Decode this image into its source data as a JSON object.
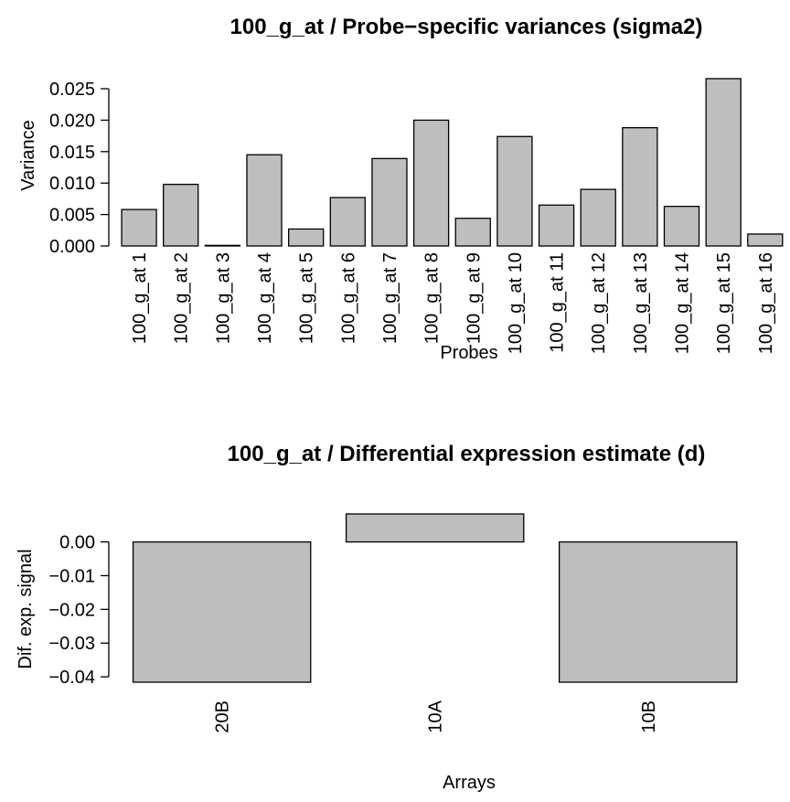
{
  "chart_data": [
    {
      "type": "bar",
      "title": "100_g_at / Probe−specific variances (sigma2)",
      "xlabel": "Probes",
      "ylabel": "Variance",
      "categories": [
        "100_g_at 1",
        "100_g_at 2",
        "100_g_at 3",
        "100_g_at 4",
        "100_g_at 5",
        "100_g_at 6",
        "100_g_at 7",
        "100_g_at 8",
        "100_g_at 9",
        "100_g_at 10",
        "100_g_at 11",
        "100_g_at 12",
        "100_g_at 13",
        "100_g_at 14",
        "100_g_at 15",
        "100_g_at 16"
      ],
      "values": [
        0.0058,
        0.0098,
        0.0001,
        0.0145,
        0.0027,
        0.0077,
        0.0139,
        0.02,
        0.0044,
        0.0174,
        0.0065,
        0.009,
        0.0188,
        0.0063,
        0.0266,
        0.0019
      ],
      "yticks": [
        0.0,
        0.005,
        0.01,
        0.015,
        0.02,
        0.025
      ],
      "ytick_labels": [
        "0.000",
        "0.005",
        "0.010",
        "0.015",
        "0.020",
        "0.025"
      ],
      "ylim": [
        0,
        0.0266
      ],
      "grid": false,
      "bar_color": "#bebebe"
    },
    {
      "type": "bar",
      "title": "100_g_at / Differential expression estimate (d)",
      "xlabel": "Arrays",
      "ylabel": "Dif. exp. signal",
      "categories": [
        "20B",
        "10A",
        "10B"
      ],
      "values": [
        -0.0416,
        0.0083,
        -0.0416
      ],
      "yticks": [
        -0.04,
        -0.03,
        -0.02,
        -0.01,
        0.0
      ],
      "ytick_labels": [
        "−0.04",
        "−0.03",
        "−0.02",
        "−0.01",
        "0.00"
      ],
      "ylim": [
        -0.0416,
        0.0083
      ],
      "grid": false,
      "bar_color": "#bebebe"
    }
  ]
}
